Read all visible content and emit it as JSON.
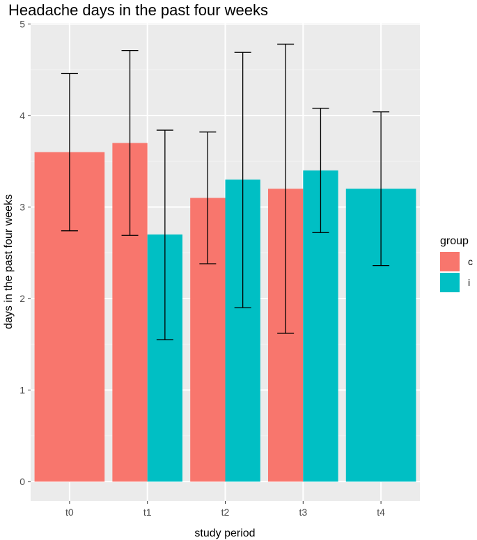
{
  "chart_data": {
    "type": "bar",
    "title": "Headache days in the past four weeks",
    "xlabel": "study period",
    "ylabel": "days in the past four weeks",
    "categories": [
      "t0",
      "t1",
      "t2",
      "t3",
      "t4"
    ],
    "ylim": [
      0,
      5
    ],
    "yticks": [
      0,
      1,
      2,
      3,
      4,
      5
    ],
    "grid": true,
    "legend": {
      "title": "group",
      "position": "right"
    },
    "series": [
      {
        "name": "c",
        "color": "#F8766D",
        "values": [
          3.6,
          3.7,
          3.1,
          3.2,
          null
        ],
        "error_low": [
          2.74,
          2.69,
          2.38,
          1.62,
          null
        ],
        "error_high": [
          4.46,
          4.71,
          3.82,
          4.78,
          null
        ]
      },
      {
        "name": "i",
        "color": "#00BFC4",
        "values": [
          null,
          2.7,
          3.3,
          3.4,
          3.2
        ],
        "error_low": [
          null,
          1.55,
          1.9,
          2.72,
          2.36
        ],
        "error_high": [
          null,
          3.84,
          4.69,
          4.08,
          4.04
        ]
      }
    ]
  }
}
